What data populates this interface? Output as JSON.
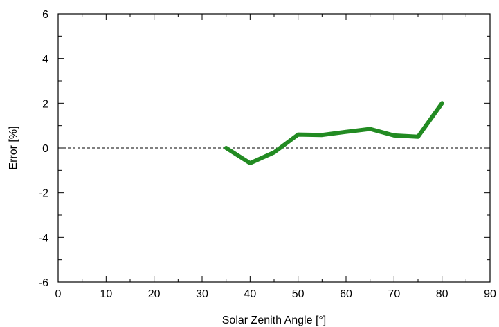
{
  "chart_data": {
    "type": "line",
    "xlabel": "Solar Zenith Angle [°]",
    "ylabel": "Error [%]",
    "xlim": [
      0,
      90
    ],
    "ylim": [
      -6,
      6
    ],
    "x_ticks": [
      0,
      10,
      20,
      30,
      40,
      50,
      60,
      70,
      80,
      90
    ],
    "x_tick_labels": [
      "0",
      "10",
      "20",
      "30",
      "40",
      "50",
      "60",
      "70",
      "80",
      "90"
    ],
    "y_ticks": [
      -6,
      -4,
      -2,
      0,
      2,
      4,
      6
    ],
    "y_tick_labels": [
      "-6",
      "-4",
      "-2",
      "0",
      "2",
      "4",
      "6"
    ],
    "grid": false,
    "reference_line": {
      "y": 0,
      "style": "dashed",
      "color": "#000000"
    },
    "series": [
      {
        "color": "#228b22",
        "x": [
          35,
          40,
          45,
          50,
          55,
          60,
          65,
          70,
          75,
          80
        ],
        "y": [
          0.0,
          -0.68,
          -0.2,
          0.6,
          0.58,
          0.72,
          0.85,
          0.56,
          0.5,
          2.0
        ]
      }
    ]
  }
}
